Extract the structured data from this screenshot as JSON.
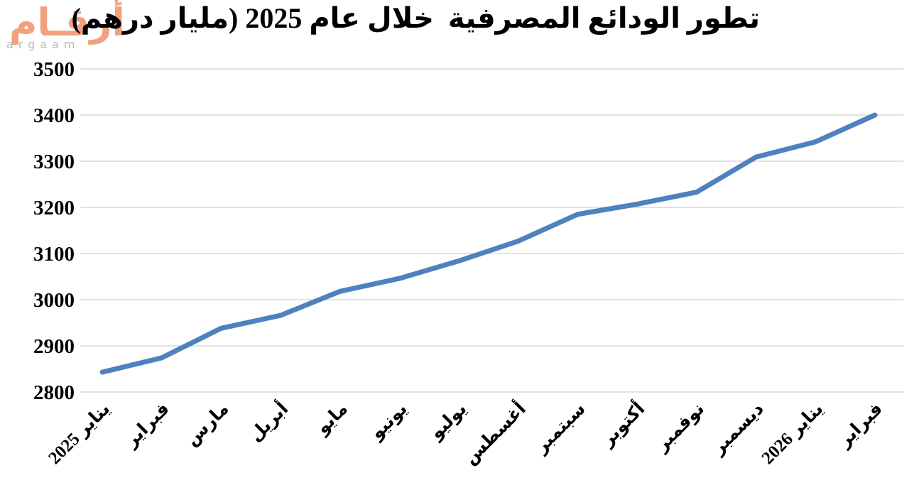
{
  "logo": {
    "arabic": "أرقـام",
    "latin": "argaam",
    "brand_color": "#F2A17E",
    "latin_color": "#B9B9B9"
  },
  "chart_data": {
    "type": "line",
    "title": "تطور الودائع المصرفية  خلال عام 2025 (مليار درهم)",
    "categories": [
      "يناير 2025",
      "فبراير",
      "مارس",
      "أبريل",
      "مايو",
      "يونيو",
      "يوليو",
      "أغسطس",
      "سبتمبر",
      "أكتوبر",
      "نوفمبر",
      "ديسمبر",
      "يناير 2026",
      "فبراير"
    ],
    "values": [
      2843,
      2874,
      2938,
      2966,
      3018,
      3046,
      3084,
      3127,
      3185,
      3207,
      3233,
      3309,
      3342,
      3400
    ],
    "xlabel": "",
    "ylabel": "",
    "ylim": [
      2800,
      3500
    ],
    "ytick_step": 100,
    "yticks": [
      "3500",
      "3400",
      "3300",
      "3200",
      "3100",
      "3000",
      "2900",
      "2800"
    ],
    "grid": true,
    "legend_position": "none",
    "line_color": "#4F81BD",
    "gridline_color": "#D9D9D9",
    "text_color": "#000000"
  }
}
